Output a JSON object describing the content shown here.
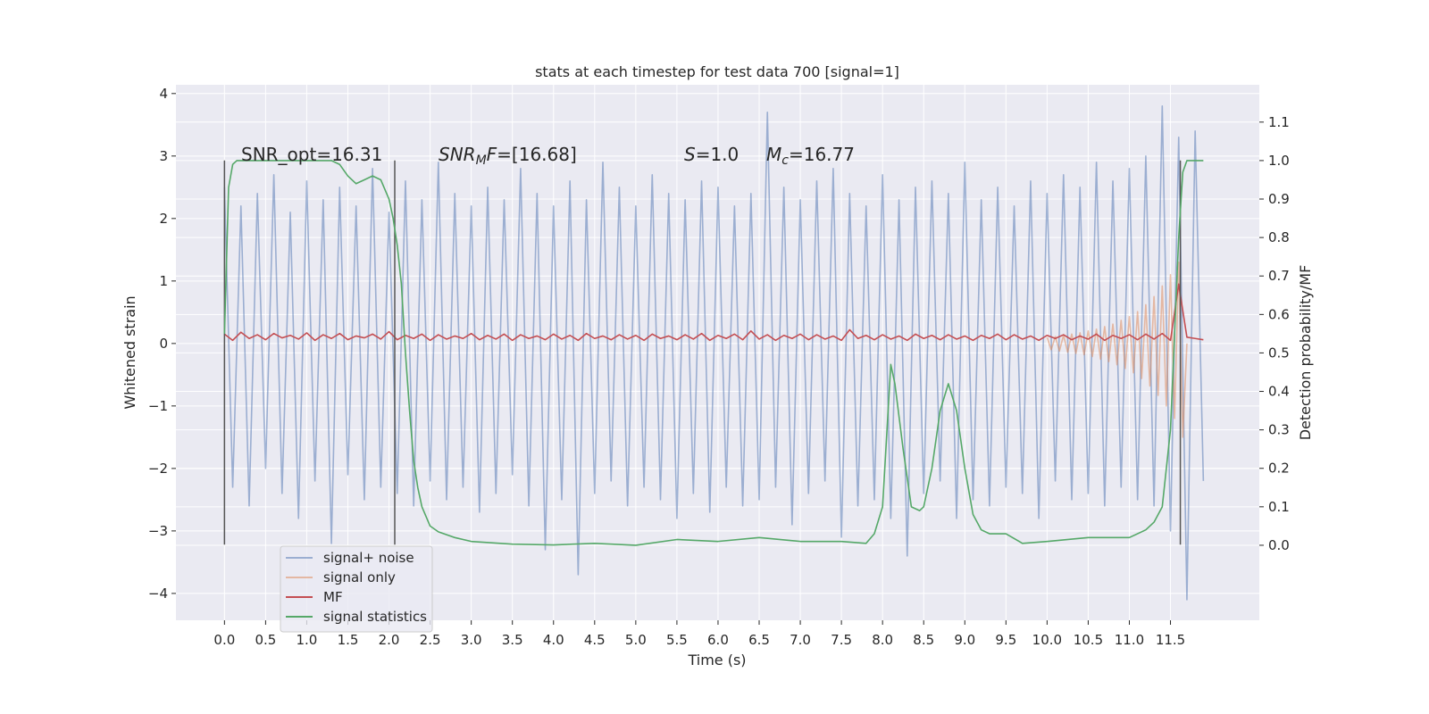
{
  "chart_data": {
    "type": "line",
    "title": "stats at each timestep for test data 700 [signal=1]",
    "xlabel": "Time (s)",
    "ylabel": "Whitened strain",
    "y2label": "Detection probability/MF",
    "xlim": [
      -0.59,
      12.58
    ],
    "ylim": [
      -4.43,
      4.14
    ],
    "y2lim": [
      -0.195,
      1.197
    ],
    "grid": true,
    "legend": "lower left",
    "xticks": [
      {
        "value": 0,
        "label": "0.0"
      },
      {
        "value": 0.5,
        "label": "0.5"
      },
      {
        "value": 1,
        "label": "1.0"
      },
      {
        "value": 1.5,
        "label": "1.5"
      },
      {
        "value": 2,
        "label": "2.0"
      },
      {
        "value": 2.5,
        "label": "2.5"
      },
      {
        "value": 3,
        "label": "3.0"
      },
      {
        "value": 3.5,
        "label": "3.5"
      },
      {
        "value": 4,
        "label": "4.0"
      },
      {
        "value": 4.5,
        "label": "4.5"
      },
      {
        "value": 5,
        "label": "5.0"
      },
      {
        "value": 5.5,
        "label": "5.5"
      },
      {
        "value": 6,
        "label": "6.0"
      },
      {
        "value": 6.5,
        "label": "6.5"
      },
      {
        "value": 7,
        "label": "7.0"
      },
      {
        "value": 7.5,
        "label": "7.5"
      },
      {
        "value": 8,
        "label": "8.0"
      },
      {
        "value": 8.5,
        "label": "8.5"
      },
      {
        "value": 9,
        "label": "9.0"
      },
      {
        "value": 9.5,
        "label": "9.5"
      },
      {
        "value": 10,
        "label": "10.0"
      },
      {
        "value": 10.5,
        "label": "10.5"
      },
      {
        "value": 11,
        "label": "11.0"
      },
      {
        "value": 11.5,
        "label": "11.5"
      }
    ],
    "yticks": [
      {
        "value": -4,
        "label": "−4"
      },
      {
        "value": -3,
        "label": "−3"
      },
      {
        "value": -2,
        "label": "−2"
      },
      {
        "value": -1,
        "label": "−1"
      },
      0,
      1,
      2,
      3,
      4
    ],
    "y2ticks": [
      {
        "value": 0,
        "label": "0.0"
      },
      {
        "value": 0.1,
        "label": "0.1"
      },
      {
        "value": 0.2,
        "label": "0.2"
      },
      {
        "value": 0.3,
        "label": "0.3"
      },
      {
        "value": 0.4,
        "label": "0.4"
      },
      {
        "value": 0.5,
        "label": "0.5"
      },
      {
        "value": 0.6,
        "label": "0.6"
      },
      {
        "value": 0.7,
        "label": "0.7"
      },
      {
        "value": 0.8,
        "label": "0.8"
      },
      {
        "value": 0.9,
        "label": "0.9"
      },
      {
        "value": 1,
        "label": "1.0"
      },
      {
        "value": 1.1,
        "label": "1.1"
      }
    ],
    "x": [
      0,
      0.1,
      0.2,
      0.3,
      0.4,
      0.5,
      0.6,
      0.7,
      0.8,
      0.9,
      1,
      1.1,
      1.2,
      1.3,
      1.4,
      1.5,
      1.6,
      1.7,
      1.8,
      1.9,
      2,
      2.1,
      2.2,
      2.3,
      2.4,
      2.5,
      2.6,
      2.7,
      2.8,
      2.9,
      3,
      3.1,
      3.2,
      3.3,
      3.4,
      3.5,
      3.6,
      3.7,
      3.8,
      3.9,
      4,
      4.1,
      4.2,
      4.3,
      4.4,
      4.5,
      4.6,
      4.7,
      4.8,
      4.9,
      5,
      5.1,
      5.2,
      5.3,
      5.4,
      5.5,
      5.6,
      5.7,
      5.8,
      5.9,
      6,
      6.1,
      6.2,
      6.3,
      6.4,
      6.5,
      6.6,
      6.7,
      6.8,
      6.9,
      7,
      7.1,
      7.2,
      7.3,
      7.4,
      7.5,
      7.6,
      7.7,
      7.8,
      7.9,
      8,
      8.1,
      8.2,
      8.3,
      8.4,
      8.5,
      8.6,
      8.7,
      8.8,
      8.9,
      9,
      9.1,
      9.2,
      9.3,
      9.4,
      9.5,
      9.6,
      9.7,
      9.8,
      9.9,
      10,
      10.1,
      10.2,
      10.3,
      10.4,
      10.5,
      10.6,
      10.7,
      10.8,
      10.9,
      11,
      11.1,
      11.2,
      11.3,
      11.4,
      11.5,
      11.6,
      11.7,
      11.8,
      11.9
    ],
    "series": [
      {
        "name": "signal+ noise",
        "color": "#4c72b0",
        "opacity": 0.5,
        "values": [
          2.5,
          -2.3,
          2.2,
          -2.6,
          2.4,
          -2.0,
          2.7,
          -2.4,
          2.1,
          -2.8,
          2.6,
          -2.2,
          2.3,
          -3.2,
          2.5,
          -2.1,
          2.2,
          -2.5,
          2.8,
          -2.3,
          2.1,
          -2.4,
          2.6,
          -2.6,
          2.3,
          -2.2,
          2.9,
          -2.5,
          2.4,
          -2.3,
          2.2,
          -2.7,
          2.5,
          -2.4,
          2.3,
          -2.1,
          2.8,
          -2.6,
          2.4,
          -3.3,
          2.2,
          -2.5,
          2.6,
          -3.7,
          2.3,
          -2.4,
          2.9,
          -2.2,
          2.5,
          -2.6,
          2.2,
          -2.3,
          2.7,
          -2.5,
          2.4,
          -2.8,
          2.3,
          -2.4,
          2.6,
          -2.7,
          2.5,
          -2.3,
          2.2,
          -2.6,
          2.4,
          -2.5,
          3.7,
          -2.3,
          2.5,
          -2.9,
          2.3,
          -2.4,
          2.6,
          -2.2,
          2.8,
          -3.1,
          2.4,
          -2.6,
          2.2,
          -2.5,
          2.7,
          -2.8,
          2.3,
          -3.4,
          2.5,
          -2.4,
          2.6,
          -2.2,
          2.4,
          -2.8,
          2.9,
          -2.5,
          2.3,
          -2.6,
          2.5,
          -2.3,
          2.2,
          -2.4,
          2.6,
          -2.8,
          2.4,
          -2.2,
          2.7,
          -2.5,
          2.5,
          -2.4,
          2.9,
          -2.6,
          2.6,
          -2.3,
          2.8,
          -2.5,
          3.0,
          -2.6,
          3.8,
          -3.0,
          3.3,
          -4.1,
          3.4,
          -2.2
        ]
      },
      {
        "name": "signal only",
        "color": "#dd8452",
        "opacity": 0.5,
        "x": [
          10,
          10.05,
          10.1,
          10.15,
          10.2,
          10.25,
          10.3,
          10.35,
          10.4,
          10.45,
          10.5,
          10.55,
          10.6,
          10.65,
          10.7,
          10.75,
          10.8,
          10.85,
          10.9,
          10.95,
          11,
          11.05,
          11.1,
          11.15,
          11.2,
          11.25,
          11.3,
          11.35,
          11.4,
          11.45,
          11.5,
          11.55,
          11.6,
          11.65,
          11.7
        ],
        "values": [
          0.1,
          -0.1,
          0.11,
          -0.12,
          0.13,
          -0.14,
          0.15,
          -0.16,
          0.17,
          -0.18,
          0.2,
          -0.21,
          0.23,
          -0.25,
          0.27,
          -0.29,
          0.31,
          -0.34,
          0.37,
          -0.4,
          0.43,
          -0.47,
          0.51,
          -0.56,
          0.62,
          -0.68,
          0.75,
          -0.83,
          0.92,
          -1.0,
          1.1,
          -1.2,
          1.3,
          -1.5,
          0
        ]
      },
      {
        "name": "MF",
        "color": "#c44e52",
        "opacity": 1,
        "values": [
          0.15,
          0.05,
          0.18,
          0.08,
          0.14,
          0.06,
          0.16,
          0.09,
          0.13,
          0.07,
          0.17,
          0.05,
          0.14,
          0.08,
          0.16,
          0.06,
          0.12,
          0.09,
          0.15,
          0.07,
          0.19,
          0.06,
          0.13,
          0.08,
          0.15,
          0.05,
          0.14,
          0.07,
          0.12,
          0.08,
          0.16,
          0.06,
          0.13,
          0.07,
          0.15,
          0.05,
          0.14,
          0.08,
          0.12,
          0.06,
          0.15,
          0.07,
          0.13,
          0.05,
          0.16,
          0.08,
          0.12,
          0.06,
          0.14,
          0.07,
          0.13,
          0.05,
          0.15,
          0.08,
          0.12,
          0.06,
          0.14,
          0.07,
          0.16,
          0.05,
          0.13,
          0.08,
          0.15,
          0.06,
          0.2,
          0.07,
          0.14,
          0.05,
          0.13,
          0.08,
          0.15,
          0.06,
          0.14,
          0.07,
          0.12,
          0.05,
          0.22,
          0.08,
          0.13,
          0.06,
          0.14,
          0.07,
          0.12,
          0.05,
          0.15,
          0.08,
          0.13,
          0.06,
          0.14,
          0.07,
          0.12,
          0.05,
          0.13,
          0.08,
          0.15,
          0.06,
          0.14,
          0.07,
          0.12,
          0.05,
          0.13,
          0.08,
          0.14,
          0.06,
          0.12,
          0.07,
          0.15,
          0.05,
          0.13,
          0.08,
          0.14,
          0.06,
          0.15,
          0.07,
          0.16,
          0.05,
          0.95,
          0.1,
          0.08,
          0.06
        ]
      },
      {
        "name": "signal statistics",
        "color": "#55a868",
        "opacity": 1,
        "axis": "y2",
        "x": [
          0,
          0.05,
          0.1,
          0.15,
          0.2,
          0.3,
          0.5,
          1.0,
          1.3,
          1.4,
          1.5,
          1.6,
          1.7,
          1.8,
          1.9,
          2.0,
          2.05,
          2.1,
          2.15,
          2.2,
          2.25,
          2.3,
          2.35,
          2.4,
          2.5,
          2.6,
          2.8,
          3.0,
          3.5,
          4.0,
          4.5,
          5.0,
          5.5,
          6.0,
          6.5,
          7.0,
          7.5,
          7.8,
          7.9,
          8.0,
          8.1,
          8.15,
          8.25,
          8.35,
          8.45,
          8.5,
          8.6,
          8.7,
          8.8,
          8.9,
          9.0,
          9.1,
          9.2,
          9.3,
          9.5,
          9.7,
          10.0,
          10.5,
          11.0,
          11.2,
          11.3,
          11.4,
          11.5,
          11.55,
          11.6,
          11.65,
          11.7,
          11.8,
          11.9
        ],
        "values": [
          0.55,
          0.93,
          0.99,
          1.0,
          1.0,
          1.0,
          1.0,
          1.0,
          1.0,
          0.99,
          0.96,
          0.94,
          0.95,
          0.96,
          0.95,
          0.9,
          0.85,
          0.78,
          0.68,
          0.5,
          0.35,
          0.22,
          0.15,
          0.1,
          0.05,
          0.035,
          0.02,
          0.01,
          0.003,
          0.001,
          0.005,
          0.0,
          0.015,
          0.01,
          0.02,
          0.01,
          0.01,
          0.005,
          0.03,
          0.1,
          0.47,
          0.42,
          0.25,
          0.1,
          0.09,
          0.1,
          0.2,
          0.35,
          0.42,
          0.35,
          0.2,
          0.08,
          0.04,
          0.03,
          0.03,
          0.005,
          0.01,
          0.02,
          0.02,
          0.04,
          0.06,
          0.1,
          0.3,
          0.55,
          0.8,
          0.97,
          1.0,
          1.0,
          1.0
        ]
      }
    ],
    "vlines": {
      "x": [
        0,
        2.07,
        11.62
      ],
      "ymin": -3.22,
      "ymax": 2.93,
      "color": "#555555"
    },
    "annotations": [
      [
        {
          "text": "SNR_opt=16.31"
        }
      ],
      [
        {
          "text": "SNR",
          "italic": true
        },
        {
          "text": "M",
          "italic": true,
          "sub": true
        },
        {
          "text": "F",
          "italic": true
        },
        {
          "text": "=[16.68]"
        }
      ],
      [
        {
          "text": "S",
          "italic": true
        },
        {
          "text": "=1.0"
        }
      ],
      [
        {
          "text": "M",
          "italic": true
        },
        {
          "text": "c",
          "italic": true,
          "sub": true
        },
        {
          "text": "=16.77"
        }
      ]
    ]
  }
}
